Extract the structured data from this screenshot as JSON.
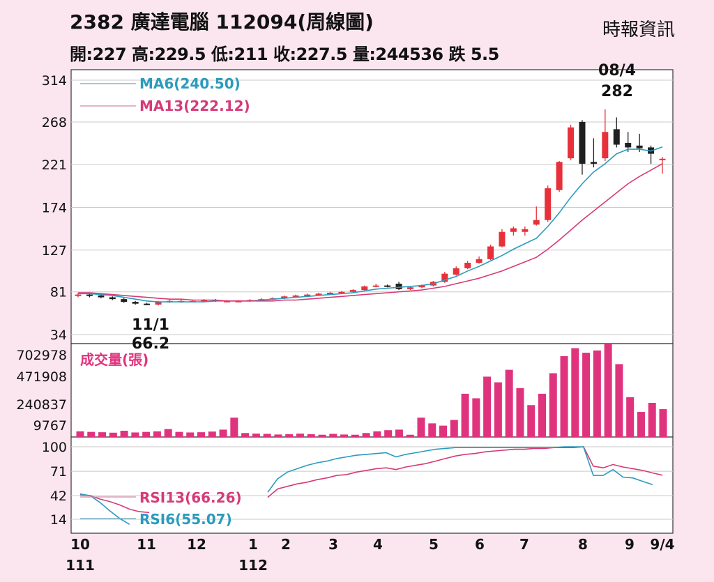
{
  "header": {
    "title": "2382  廣達電腦 112094(周線圖)",
    "source": "時報資訊",
    "quote": "開:227 高:229.5 低:211 收:227.5 量:244536 跌 5.5"
  },
  "colors": {
    "up": "#e8303a",
    "down": "#1f1f1f",
    "ma6": "#2a9bbd",
    "ma13": "#d63a78",
    "volume": "#e0337d",
    "rsi13": "#d63a78",
    "rsi6": "#2a9bbd",
    "grid": "#c8c8c8"
  },
  "chart_data": [
    {
      "type": "candlestick",
      "name": "price",
      "ylim": [
        34,
        314
      ],
      "y_ticks": [
        314,
        268,
        221,
        174,
        127,
        81,
        34
      ],
      "x_tick_labels": [
        "10",
        "11",
        "12",
        "1",
        "2",
        "3",
        "4",
        "5",
        "6",
        "7",
        "8",
        "9",
        "9/4"
      ],
      "x_sub_labels": [
        "111",
        "",
        "",
        "112",
        "",
        "",
        "",
        "",
        "",
        "",
        "",
        "",
        ""
      ],
      "legend": [
        {
          "label": "MA6(240.50)",
          "series": "ma6"
        },
        {
          "label": "MA13(222.12)",
          "series": "ma13"
        }
      ],
      "annotations": [
        {
          "label": "11/1",
          "value": "66.2",
          "week": 7
        },
        {
          "label": "08/4",
          "value": "282",
          "week": 44
        }
      ],
      "candles": [
        {
          "o": 77,
          "h": 80,
          "l": 75,
          "c": 78
        },
        {
          "o": 78,
          "h": 79,
          "l": 75,
          "c": 77
        },
        {
          "o": 77,
          "h": 78,
          "l": 74,
          "c": 75
        },
        {
          "o": 75,
          "h": 76,
          "l": 72,
          "c": 73
        },
        {
          "o": 73,
          "h": 74,
          "l": 69,
          "c": 70
        },
        {
          "o": 70,
          "h": 71,
          "l": 67,
          "c": 68
        },
        {
          "o": 68,
          "h": 69,
          "l": 66.2,
          "c": 67
        },
        {
          "o": 67,
          "h": 71,
          "l": 66,
          "c": 70
        },
        {
          "o": 70,
          "h": 73,
          "l": 69,
          "c": 71
        },
        {
          "o": 71,
          "h": 73,
          "l": 69,
          "c": 71
        },
        {
          "o": 71,
          "h": 72,
          "l": 70,
          "c": 71
        },
        {
          "o": 71,
          "h": 73,
          "l": 70,
          "c": 72
        },
        {
          "o": 72,
          "h": 73,
          "l": 70,
          "c": 71
        },
        {
          "o": 71,
          "h": 72,
          "l": 70,
          "c": 71
        },
        {
          "o": 71,
          "h": 72,
          "l": 70,
          "c": 71
        },
        {
          "o": 71,
          "h": 73,
          "l": 70,
          "c": 72
        },
        {
          "o": 72,
          "h": 74,
          "l": 71,
          "c": 73
        },
        {
          "o": 73,
          "h": 75,
          "l": 72,
          "c": 74
        },
        {
          "o": 74,
          "h": 77,
          "l": 73,
          "c": 76
        },
        {
          "o": 76,
          "h": 78,
          "l": 75,
          "c": 77
        },
        {
          "o": 77,
          "h": 79,
          "l": 76,
          "c": 78
        },
        {
          "o": 78,
          "h": 80,
          "l": 77,
          "c": 79
        },
        {
          "o": 79,
          "h": 81,
          "l": 78,
          "c": 80
        },
        {
          "o": 80,
          "h": 82,
          "l": 79,
          "c": 81
        },
        {
          "o": 81,
          "h": 84,
          "l": 80,
          "c": 83
        },
        {
          "o": 83,
          "h": 88,
          "l": 82,
          "c": 87
        },
        {
          "o": 87,
          "h": 90,
          "l": 86,
          "c": 88
        },
        {
          "o": 88,
          "h": 89,
          "l": 86,
          "c": 87
        },
        {
          "o": 90,
          "h": 92,
          "l": 83,
          "c": 84
        },
        {
          "o": 84,
          "h": 87,
          "l": 83,
          "c": 86
        },
        {
          "o": 86,
          "h": 89,
          "l": 85,
          "c": 88
        },
        {
          "o": 88,
          "h": 93,
          "l": 87,
          "c": 92
        },
        {
          "o": 92,
          "h": 103,
          "l": 91,
          "c": 101
        },
        {
          "o": 100,
          "h": 109,
          "l": 99,
          "c": 107
        },
        {
          "o": 107,
          "h": 115,
          "l": 106,
          "c": 113
        },
        {
          "o": 113,
          "h": 120,
          "l": 112,
          "c": 117
        },
        {
          "o": 117,
          "h": 133,
          "l": 116,
          "c": 131
        },
        {
          "o": 131,
          "h": 150,
          "l": 130,
          "c": 147
        },
        {
          "o": 147,
          "h": 153,
          "l": 143,
          "c": 151
        },
        {
          "o": 147,
          "h": 153,
          "l": 143,
          "c": 150
        },
        {
          "o": 155,
          "h": 175,
          "l": 154,
          "c": 160
        },
        {
          "o": 160,
          "h": 198,
          "l": 158,
          "c": 195
        },
        {
          "o": 193,
          "h": 225,
          "l": 191,
          "c": 224
        },
        {
          "o": 228,
          "h": 265,
          "l": 226,
          "c": 262
        },
        {
          "o": 268,
          "h": 270,
          "l": 210,
          "c": 222
        },
        {
          "o": 224,
          "h": 250,
          "l": 218,
          "c": 222
        },
        {
          "o": 228,
          "h": 282,
          "l": 225,
          "c": 257
        },
        {
          "o": 260,
          "h": 273,
          "l": 240,
          "c": 243
        },
        {
          "o": 245,
          "h": 257,
          "l": 235,
          "c": 240
        },
        {
          "o": 242,
          "h": 255,
          "l": 235,
          "c": 239
        },
        {
          "o": 240,
          "h": 242,
          "l": 222,
          "c": 233
        },
        {
          "o": 227,
          "h": 229.5,
          "l": 211,
          "c": 227.5
        }
      ],
      "ma6": [
        79,
        79,
        78,
        77,
        75,
        73,
        71,
        70,
        70,
        70,
        70,
        70,
        71,
        71,
        71,
        71,
        72,
        73,
        74,
        75,
        76,
        77,
        78,
        79,
        80,
        82,
        84,
        85,
        86,
        87,
        88,
        90,
        94,
        98,
        104,
        109,
        115,
        121,
        128,
        134,
        140,
        153,
        168,
        185,
        200,
        213,
        222,
        233,
        238,
        238,
        236,
        240.5
      ],
      "ma13": [
        80,
        80,
        79,
        78,
        77,
        76,
        75,
        74,
        73,
        73,
        72,
        72,
        72,
        71,
        71,
        71,
        71,
        71,
        72,
        72,
        73,
        74,
        75,
        76,
        77,
        78,
        79,
        80,
        81,
        82,
        83,
        85,
        87,
        90,
        93,
        96,
        100,
        104,
        109,
        114,
        119,
        128,
        138,
        149,
        160,
        170,
        180,
        190,
        200,
        208,
        215,
        222.12
      ]
    },
    {
      "type": "bar",
      "name": "volume",
      "title": "成交量(張)",
      "y_ticks": [
        702978,
        471908,
        240837,
        9767
      ],
      "values": [
        50000,
        45000,
        42000,
        38000,
        55000,
        40000,
        45000,
        50000,
        70000,
        45000,
        40000,
        42000,
        48000,
        65000,
        170000,
        35000,
        30000,
        28000,
        22000,
        25000,
        30000,
        25000,
        20000,
        28000,
        22000,
        20000,
        35000,
        50000,
        60000,
        65000,
        20000,
        170000,
        120000,
        100000,
        150000,
        380000,
        340000,
        530000,
        480000,
        590000,
        430000,
        280000,
        380000,
        560000,
        710000,
        780000,
        740000,
        760000,
        820000,
        640000,
        350000,
        220000,
        300000,
        244536
      ]
    },
    {
      "type": "line",
      "name": "rsi",
      "y_ticks": [
        100,
        71,
        42,
        14
      ],
      "legend": [
        {
          "label": "RSI13(66.26)",
          "series": "rsi13"
        },
        {
          "label": "RSI6(55.07)",
          "series": "rsi6"
        }
      ],
      "rsi13": [
        43,
        42,
        38,
        35,
        31,
        26,
        23,
        22,
        null,
        null,
        null,
        null,
        null,
        null,
        null,
        null,
        null,
        null,
        null,
        40,
        50,
        53,
        56,
        58,
        61,
        63,
        66,
        67,
        70,
        72,
        74,
        75,
        73,
        76,
        78,
        80,
        83,
        86,
        89,
        91,
        92,
        94,
        95,
        96,
        97,
        97,
        98,
        98,
        99,
        99,
        99,
        100,
        77,
        75,
        79,
        76,
        74,
        72,
        69,
        66.26
      ],
      "rsi6": [
        44,
        42,
        34,
        24,
        15,
        8,
        null,
        null,
        null,
        null,
        null,
        null,
        null,
        null,
        null,
        null,
        null,
        null,
        null,
        46,
        62,
        70,
        74,
        78,
        81,
        83,
        86,
        88,
        90,
        91,
        92,
        93,
        88,
        91,
        93,
        95,
        97,
        98,
        99,
        99,
        99,
        99,
        99,
        99,
        99,
        99,
        99,
        99,
        99,
        100,
        100,
        100,
        66,
        66,
        73,
        64,
        63,
        59,
        55.07
      ]
    }
  ]
}
